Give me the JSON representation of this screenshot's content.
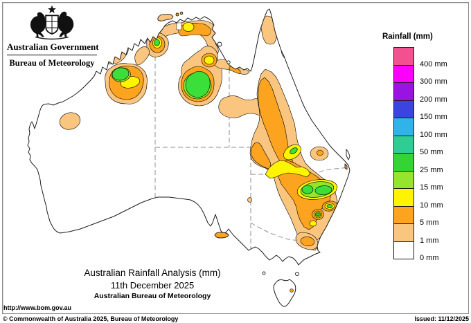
{
  "header": {
    "government": "Australian Government",
    "bureau": "Bureau of Meteorology"
  },
  "legend": {
    "title": "Rainfall (mm)",
    "entries": [
      {
        "color": "#F2508E",
        "label": "400 mm"
      },
      {
        "color": "#FB00FB",
        "label": "300 mm"
      },
      {
        "color": "#9914E0",
        "label": "200 mm"
      },
      {
        "color": "#3C44DF",
        "label": "150 mm"
      },
      {
        "color": "#2FB3E8",
        "label": "100 mm"
      },
      {
        "color": "#2FCC94",
        "label": "50 mm"
      },
      {
        "color": "#33D433",
        "label": "25 mm"
      },
      {
        "color": "#94E52C",
        "label": "15 mm"
      },
      {
        "color": "#FEF400",
        "label": "10 mm"
      },
      {
        "color": "#FCA41F",
        "label": "5 mm"
      },
      {
        "color": "#FAC57E",
        "label": "1 mm"
      },
      {
        "color": "#FFFFFF",
        "label": "0 mm"
      }
    ]
  },
  "map": {
    "palette": {
      "lightOrange": "#FAC57E",
      "orange": "#FCA41F",
      "yellow": "#FEF400",
      "yellowGreen": "#94E52C",
      "green": "#3ADF3A",
      "coast": "#1a1a1a",
      "border": "#8f8f8f"
    }
  },
  "titles": {
    "main": "Australian Rainfall Analysis (mm)",
    "date": "11th December 2025",
    "org": "Australian Bureau of Meteorology"
  },
  "footer": {
    "url": "http://www.bom.gov.au",
    "copyright": "© Commonwealth of Australia 2025, Bureau of Meteorology",
    "issued": "Issued: 11/12/2025"
  }
}
